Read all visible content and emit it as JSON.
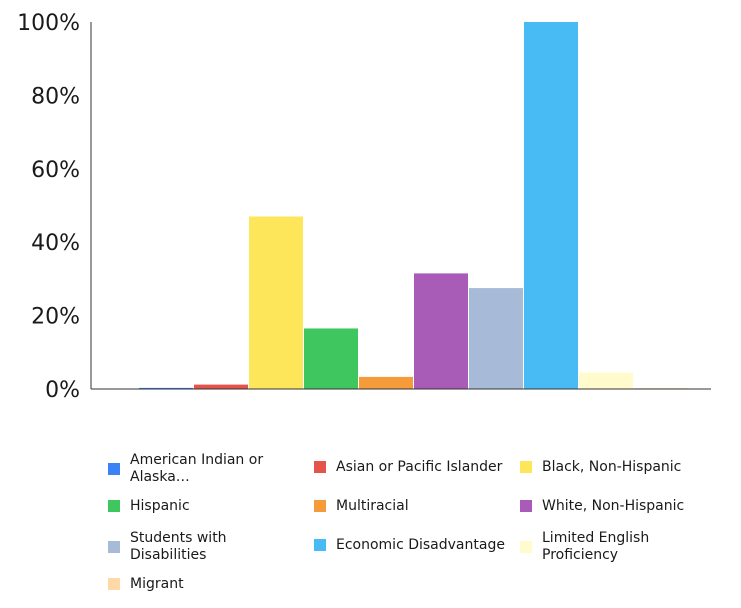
{
  "chart_data": {
    "type": "bar",
    "title": "",
    "xlabel": "",
    "ylabel": "",
    "ylim": [
      0,
      100
    ],
    "yticks": [
      0,
      20,
      40,
      60,
      80,
      100
    ],
    "ytick_labels": [
      "0%",
      "20%",
      "40%",
      "60%",
      "80%",
      "100%"
    ],
    "grid": false,
    "legend_position": "bottom",
    "series": [
      {
        "name": "American Indian or Alaska…",
        "value": 0.3,
        "color": "#3b82f6"
      },
      {
        "name": "Asian or Pacific Islander",
        "value": 1.2,
        "color": "#e5534b"
      },
      {
        "name": "Black, Non-Hispanic",
        "value": 47,
        "color": "#fde65a"
      },
      {
        "name": "Hispanic",
        "value": 16.5,
        "color": "#3fc65e"
      },
      {
        "name": "Multiracial",
        "value": 3.3,
        "color": "#f59b3a"
      },
      {
        "name": "White, Non-Hispanic",
        "value": 31.5,
        "color": "#a95bb8"
      },
      {
        "name": "Students with Disabilities",
        "value": 27.5,
        "color": "#a7bbd8"
      },
      {
        "name": "Economic Disadvantage",
        "value": 100,
        "color": "#48bbf4"
      },
      {
        "name": "Limited English Proficiency",
        "value": 4.5,
        "color": "#fffbcc"
      },
      {
        "name": "Migrant",
        "value": 0.2,
        "color": "#ffd8a8"
      }
    ]
  }
}
